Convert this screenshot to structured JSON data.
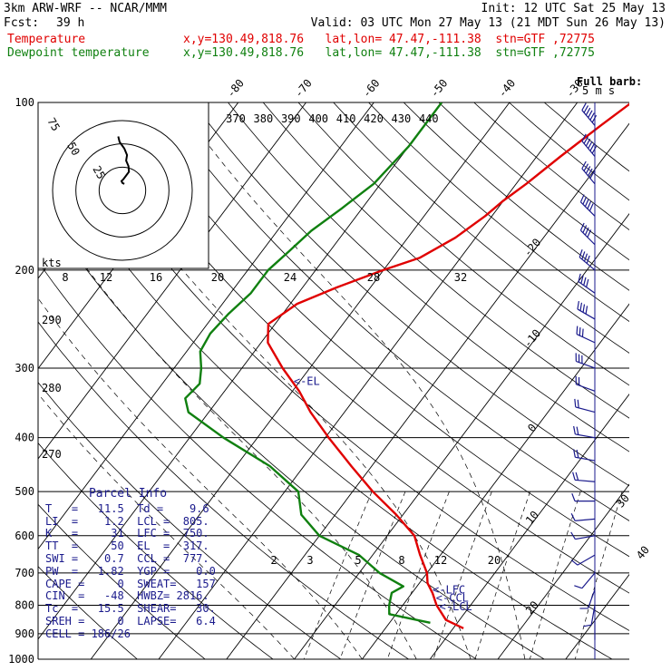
{
  "header": {
    "model": "3km ARW-WRF -- NCAR/MMM",
    "init": "Init: 12 UTC Sat 25 May 13",
    "fcst_label": "Fcst:",
    "fcst_value": "39 h",
    "valid": "Valid: 03 UTC Mon 27 May 13 (21 MDT Sun 26 May 13)",
    "temp_label": "Temperature",
    "temp_info": "x,y=130.49,818.76   lat,lon= 47.47,-111.38  stn=GTF ,72775",
    "dew_label": "Dewpoint temperature",
    "dew_info": "x,y=130.49,818.76   lat,lon= 47.47,-111.38  stn=GTF ,72775"
  },
  "barb_label": "Full barb:",
  "barb_speed": "5 m s",
  "colors": {
    "temperature": "#e00000",
    "dewpoint": "#108010",
    "annotation": "#1a1a8c"
  },
  "chart_data": {
    "type": "line",
    "ylabel": "",
    "pressure_ticks": [
      "100",
      "200",
      "300",
      "400",
      "500",
      "600",
      "700",
      "800",
      "900",
      "1000"
    ],
    "isotherm_labels": [
      "-80",
      "-70",
      "-60",
      "-50",
      "-40",
      "-30",
      "-20",
      "-10",
      "0",
      "10",
      "20",
      "30",
      "40"
    ],
    "theta_labels": [
      "290",
      "280",
      "270"
    ],
    "theta_top_labels": [
      "370",
      "380",
      "390",
      "400",
      "410",
      "420",
      "430",
      "440"
    ],
    "mixing_ratio_labels": [
      "2",
      "3",
      "5",
      "8",
      "12",
      "20"
    ],
    "hodograph": {
      "ring_labels": [
        "75",
        "50",
        "25"
      ],
      "unit": "kts",
      "speed_ticks": [
        "8",
        "12",
        "16",
        "20",
        "24",
        "28",
        "32"
      ]
    },
    "series": [
      {
        "name": "Temperature",
        "points": [
          [
            100,
            -22
          ],
          [
            110,
            -24
          ],
          [
            125,
            -26.5
          ],
          [
            140,
            -28.5
          ],
          [
            150,
            -30
          ],
          [
            160,
            -31
          ],
          [
            175,
            -33
          ],
          [
            190,
            -36
          ],
          [
            200,
            -40
          ],
          [
            215,
            -45
          ],
          [
            230,
            -49
          ],
          [
            250,
            -51
          ],
          [
            270,
            -49
          ],
          [
            300,
            -44
          ],
          [
            330,
            -39
          ],
          [
            360,
            -35
          ],
          [
            400,
            -29.5
          ],
          [
            450,
            -23
          ],
          [
            500,
            -17
          ],
          [
            550,
            -11
          ],
          [
            600,
            -6
          ],
          [
            650,
            -3
          ],
          [
            700,
            0
          ],
          [
            730,
            1.2
          ],
          [
            760,
            3
          ],
          [
            800,
            5
          ],
          [
            850,
            8
          ],
          [
            880,
            11.5
          ]
        ]
      },
      {
        "name": "Dewpoint temperature",
        "points": [
          [
            100,
            -50
          ],
          [
            120,
            -50
          ],
          [
            140,
            -51
          ],
          [
            155,
            -53
          ],
          [
            170,
            -55
          ],
          [
            185,
            -56
          ],
          [
            200,
            -57
          ],
          [
            220,
            -57
          ],
          [
            240,
            -58
          ],
          [
            260,
            -58.5
          ],
          [
            280,
            -58
          ],
          [
            300,
            -56
          ],
          [
            320,
            -54.5
          ],
          [
            340,
            -55
          ],
          [
            360,
            -53
          ],
          [
            400,
            -45
          ],
          [
            450,
            -35
          ],
          [
            500,
            -28
          ],
          [
            550,
            -25
          ],
          [
            600,
            -20
          ],
          [
            650,
            -12
          ],
          [
            700,
            -7
          ],
          [
            740,
            -2
          ],
          [
            760,
            -3
          ],
          [
            800,
            -2
          ],
          [
            830,
            -1
          ],
          [
            860,
            6
          ]
        ]
      }
    ],
    "hodograph_path": [
      [
        -4.5,
        58
      ],
      [
        -3,
        52
      ],
      [
        2,
        45
      ],
      [
        5,
        38
      ],
      [
        4,
        32
      ],
      [
        6.5,
        26
      ],
      [
        7,
        20
      ],
      [
        4,
        16
      ],
      [
        1,
        12
      ],
      [
        -1,
        10
      ],
      [
        0,
        8
      ],
      [
        2,
        7
      ]
    ],
    "winds": [
      {
        "p": 110,
        "dir": 320,
        "spd": 30
      },
      {
        "p": 125,
        "dir": 320,
        "spd": 30
      },
      {
        "p": 140,
        "dir": 320,
        "spd": 28
      },
      {
        "p": 160,
        "dir": 315,
        "spd": 26
      },
      {
        "p": 180,
        "dir": 315,
        "spd": 24
      },
      {
        "p": 200,
        "dir": 310,
        "spd": 22
      },
      {
        "p": 220,
        "dir": 305,
        "spd": 20
      },
      {
        "p": 245,
        "dir": 300,
        "spd": 20
      },
      {
        "p": 270,
        "dir": 295,
        "spd": 18
      },
      {
        "p": 300,
        "dir": 290,
        "spd": 16
      },
      {
        "p": 330,
        "dir": 290,
        "spd": 14
      },
      {
        "p": 360,
        "dir": 285,
        "spd": 12
      },
      {
        "p": 400,
        "dir": 280,
        "spd": 12
      },
      {
        "p": 440,
        "dir": 280,
        "spd": 10
      },
      {
        "p": 480,
        "dir": 275,
        "spd": 10
      },
      {
        "p": 520,
        "dir": 270,
        "spd": 8
      },
      {
        "p": 560,
        "dir": 265,
        "spd": 8
      },
      {
        "p": 600,
        "dir": 260,
        "spd": 6
      },
      {
        "p": 650,
        "dir": 240,
        "spd": 6
      },
      {
        "p": 700,
        "dir": 220,
        "spd": 6
      },
      {
        "p": 750,
        "dir": 200,
        "spd": 5
      },
      {
        "p": 800,
        "dir": 190,
        "spd": 5
      },
      {
        "p": 850,
        "dir": 180,
        "spd": 4
      }
    ],
    "annotations": [
      {
        "label": "<-EL",
        "p": 317,
        "side": "left"
      },
      {
        "label": "<-LFC",
        "p": 750,
        "side": "left"
      },
      {
        "label": "<-CCL",
        "p": 777,
        "side": "left"
      },
      {
        "label": "<-LCL",
        "p": 805,
        "side": "left"
      }
    ]
  },
  "parcel_info": {
    "title": "Parcel Info",
    "rows": [
      "T   =   11.5  Td =    9.6",
      "LI  =    1.2  LCL =  805.",
      "K   =     31  LFC =  750.",
      "TT  =     50  EL  =  317.",
      "SWI =    0.7  CCL =  777.",
      "PW  =   1.82  YGP =    0.0",
      "CAPE =     0  SWEAT=   157",
      "CIN  =   -48  HWBZ= 2816.",
      "Tc  =   15.5  SHEAR=   30.",
      "SREH =     0  LAPSE=   6.4",
      "CELL = 186/26"
    ]
  }
}
